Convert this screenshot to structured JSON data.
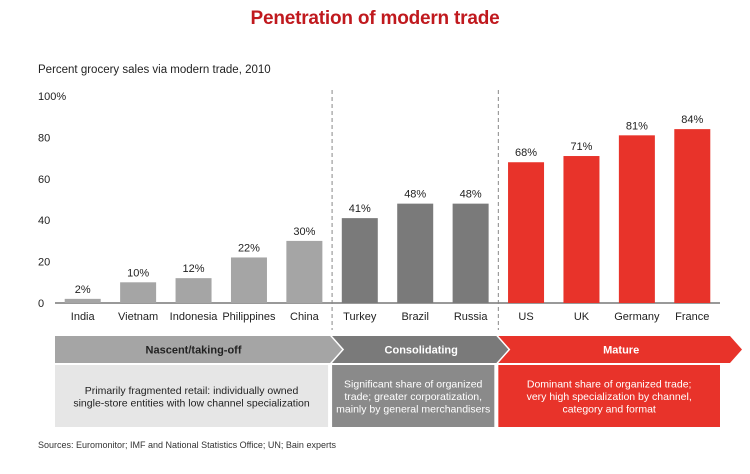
{
  "title": "Penetration of modern trade",
  "subtitle": "Percent grocery sales via modern trade, 2010",
  "sources": "Sources: Euromonitor; IMF and National Statistics Office; UN; Bain experts",
  "colors": {
    "title": "#c0191e",
    "nascent": "#a5a5a5",
    "consolidating": "#7a7a7a",
    "mature": "#e8332a",
    "nascent_box": "#e6e6e6",
    "consolidating_box": "#8a8a8a",
    "mature_box": "#e8332a"
  },
  "stages": [
    {
      "key": "nascent",
      "label": "Nascent/taking-off",
      "description": [
        "Primarily fragmented retail: individually owned",
        "single-store entities with low channel specialization"
      ]
    },
    {
      "key": "consolidating",
      "label": "Consolidating",
      "description": [
        "Significant share of organized",
        "trade; greater corporatization,",
        "mainly by general merchandisers"
      ]
    },
    {
      "key": "mature",
      "label": "Mature",
      "description": [
        "Dominant share of organized trade;",
        "very high specialization by channel,",
        "category and format"
      ]
    }
  ],
  "chart_data": {
    "type": "bar",
    "title": "Penetration of modern trade",
    "ylabel": "Percent grocery sales via modern trade, 2010",
    "ylim": [
      0,
      100
    ],
    "yticks": [
      "0",
      "20",
      "40",
      "60",
      "80",
      "100%"
    ],
    "grid": false,
    "categories": [
      "India",
      "Vietnam",
      "Indonesia",
      "Philippines",
      "China",
      "Turkey",
      "Brazil",
      "Russia",
      "US",
      "UK",
      "Germany",
      "France"
    ],
    "values": [
      2,
      10,
      12,
      22,
      30,
      41,
      48,
      48,
      68,
      71,
      81,
      84
    ],
    "value_labels": [
      "2%",
      "10%",
      "12%",
      "22%",
      "30%",
      "41%",
      "48%",
      "48%",
      "68%",
      "71%",
      "81%",
      "84%"
    ],
    "groups": [
      "nascent",
      "nascent",
      "nascent",
      "nascent",
      "nascent",
      "consolidating",
      "consolidating",
      "consolidating",
      "mature",
      "mature",
      "mature",
      "mature"
    ]
  }
}
